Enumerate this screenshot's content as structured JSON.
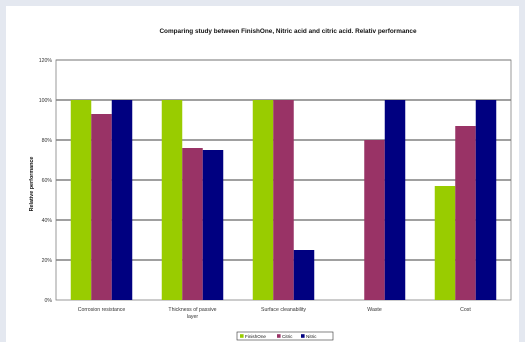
{
  "chart_data": {
    "type": "bar",
    "title": "Comparing study between FinishOne, Nitric acid and citric acid. Relativ performance",
    "ylabel": "Relative performance",
    "xlabel": "",
    "ylim": [
      0,
      120
    ],
    "yticks": [
      "0%",
      "20%",
      "40%",
      "60%",
      "80%",
      "100%",
      "120%"
    ],
    "categories": [
      [
        "Corrosion resistance"
      ],
      [
        "Thickness of passive",
        "layer"
      ],
      [
        "Surface cleanability"
      ],
      [
        "Waste"
      ],
      [
        "Cost"
      ]
    ],
    "series": [
      {
        "name": "FinishOne",
        "color": "#99cc00",
        "values": [
          100,
          100,
          100,
          0,
          57
        ]
      },
      {
        "name": "Citric",
        "color": "#993366",
        "values": [
          93,
          76,
          100,
          80,
          87
        ]
      },
      {
        "name": "Nitric",
        "color": "#000080",
        "values": [
          100,
          75,
          25,
          100,
          100
        ]
      }
    ],
    "grid": true,
    "legend": "bottom-center"
  }
}
